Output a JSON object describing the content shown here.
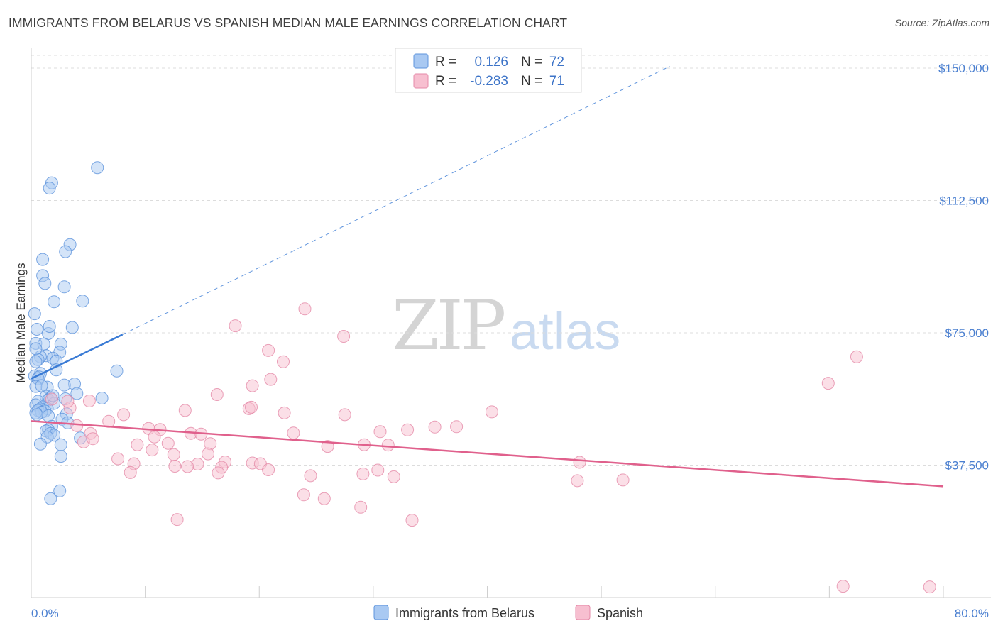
{
  "header": {
    "title": "IMMIGRANTS FROM BELARUS VS SPANISH MEDIAN MALE EARNINGS CORRELATION CHART",
    "source": "Source: ZipAtlas.com"
  },
  "watermark": {
    "zip": "ZIP",
    "atlas": "atlas"
  },
  "colors": {
    "blue_fill": "#a9c9f2",
    "blue_stroke": "#5e94dc",
    "blue_line": "#3a7bd5",
    "pink_fill": "#f7bfd0",
    "pink_stroke": "#e58aa8",
    "pink_line": "#e0608c",
    "axis_text": "#4a7fd0",
    "grid": "#dcdcdc"
  },
  "legend": {
    "rows": [
      {
        "r_label": "R =",
        "r_value": "0.126",
        "n_label": "N =",
        "n_value": "72"
      },
      {
        "r_label": "R =",
        "r_value": "-0.283",
        "n_label": "N =",
        "n_value": "71"
      }
    ]
  },
  "chart_data": {
    "type": "scatter",
    "title": "IMMIGRANTS FROM BELARUS VS SPANISH MEDIAN MALE EARNINGS CORRELATION CHART",
    "xlabel": "",
    "ylabel": "Median Male Earnings",
    "xlim": [
      0,
      80
    ],
    "ylim": [
      0,
      157000
    ],
    "x_tick_labels": [
      "0.0%",
      "80.0%"
    ],
    "y_ticks": [
      37500,
      75000,
      112500,
      150000
    ],
    "y_tick_labels": [
      "$37,500",
      "$75,000",
      "$112,500",
      "$150,000"
    ],
    "grid": true,
    "legend_position": "top-center",
    "series": [
      {
        "name": "Immigrants from Belarus",
        "color": "#a9c9f2",
        "r": 0.126,
        "n": 72,
        "trend": {
          "x": [
            0,
            8
          ],
          "y": [
            62000,
            74500
          ],
          "dashed_extension_to": [
            56,
            150500
          ]
        },
        "points": [
          [
            5.8,
            121800
          ],
          [
            1.8,
            117500
          ],
          [
            1.6,
            116000
          ],
          [
            3.4,
            100000
          ],
          [
            3.0,
            98000
          ],
          [
            1.0,
            95800
          ],
          [
            1.0,
            91200
          ],
          [
            1.2,
            89000
          ],
          [
            2.9,
            88000
          ],
          [
            4.5,
            84000
          ],
          [
            2.0,
            83800
          ],
          [
            0.3,
            80400
          ],
          [
            1.5,
            74800
          ],
          [
            3.6,
            76500
          ],
          [
            1.6,
            76800
          ],
          [
            0.5,
            76000
          ],
          [
            0.4,
            72000
          ],
          [
            1.1,
            71800
          ],
          [
            2.6,
            71800
          ],
          [
            2.5,
            69500
          ],
          [
            1.3,
            68500
          ],
          [
            0.8,
            68200
          ],
          [
            1.9,
            67800
          ],
          [
            0.6,
            67400
          ],
          [
            2.2,
            67000
          ],
          [
            0.4,
            66800
          ],
          [
            7.5,
            64200
          ],
          [
            2.2,
            64500
          ],
          [
            0.8,
            63500
          ],
          [
            0.3,
            62800
          ],
          [
            0.7,
            62500
          ],
          [
            0.6,
            62000
          ],
          [
            3.8,
            60500
          ],
          [
            0.4,
            59800
          ],
          [
            1.4,
            59600
          ],
          [
            4.0,
            57800
          ],
          [
            1.3,
            57000
          ],
          [
            1.7,
            56600
          ],
          [
            6.2,
            56500
          ],
          [
            3.0,
            56300
          ],
          [
            1.5,
            56000
          ],
          [
            0.6,
            55600
          ],
          [
            2.0,
            55000
          ],
          [
            0.4,
            54600
          ],
          [
            1.0,
            54000
          ],
          [
            1.4,
            53500
          ],
          [
            0.8,
            53400
          ],
          [
            0.6,
            53000
          ],
          [
            1.2,
            52800
          ],
          [
            0.9,
            52500
          ],
          [
            3.1,
            52000
          ],
          [
            0.4,
            52300
          ],
          [
            1.5,
            51500
          ],
          [
            0.5,
            51800
          ],
          [
            2.7,
            50500
          ],
          [
            3.2,
            49500
          ],
          [
            1.8,
            48500
          ],
          [
            1.5,
            47500
          ],
          [
            1.3,
            47200
          ],
          [
            1.7,
            46500
          ],
          [
            2.0,
            46000
          ],
          [
            1.4,
            45500
          ],
          [
            4.3,
            45200
          ],
          [
            0.8,
            43500
          ],
          [
            2.6,
            43300
          ],
          [
            2.6,
            40000
          ],
          [
            2.5,
            30200
          ],
          [
            1.7,
            28000
          ],
          [
            0.9,
            60000
          ],
          [
            0.4,
            70500
          ],
          [
            2.9,
            60200
          ],
          [
            1.9,
            57200
          ]
        ]
      },
      {
        "name": "Spanish",
        "color": "#f7bfd0",
        "r": -0.283,
        "n": 71,
        "trend": {
          "x": [
            0,
            80
          ],
          "y": [
            50000,
            31500
          ]
        },
        "points": [
          [
            24.0,
            81800
          ],
          [
            17.9,
            77000
          ],
          [
            27.4,
            74000
          ],
          [
            20.8,
            70000
          ],
          [
            22.1,
            66800
          ],
          [
            72.4,
            68200
          ],
          [
            21.0,
            61800
          ],
          [
            19.4,
            60000
          ],
          [
            69.9,
            60700
          ],
          [
            16.3,
            57500
          ],
          [
            19.1,
            53500
          ],
          [
            19.3,
            53900
          ],
          [
            13.5,
            53000
          ],
          [
            22.2,
            52300
          ],
          [
            40.4,
            52600
          ],
          [
            27.5,
            51800
          ],
          [
            8.1,
            51800
          ],
          [
            11.3,
            47600
          ],
          [
            33.0,
            47500
          ],
          [
            23.0,
            46600
          ],
          [
            35.4,
            48300
          ],
          [
            37.3,
            48400
          ],
          [
            10.3,
            47900
          ],
          [
            14.0,
            46500
          ],
          [
            14.9,
            46300
          ],
          [
            30.6,
            47000
          ],
          [
            10.8,
            45500
          ],
          [
            5.2,
            46500
          ],
          [
            15.7,
            43600
          ],
          [
            9.3,
            43300
          ],
          [
            12.0,
            43700
          ],
          [
            26.0,
            42800
          ],
          [
            29.2,
            43300
          ],
          [
            31.3,
            43200
          ],
          [
            10.6,
            41800
          ],
          [
            15.5,
            40700
          ],
          [
            12.5,
            40500
          ],
          [
            7.6,
            39300
          ],
          [
            17.0,
            38400
          ],
          [
            19.4,
            38100
          ],
          [
            20.1,
            37900
          ],
          [
            48.1,
            38300
          ],
          [
            14.6,
            37800
          ],
          [
            9.0,
            37900
          ],
          [
            12.6,
            37200
          ],
          [
            13.7,
            37100
          ],
          [
            16.7,
            36900
          ],
          [
            20.8,
            36200
          ],
          [
            30.4,
            36100
          ],
          [
            29.1,
            35000
          ],
          [
            16.4,
            35300
          ],
          [
            8.7,
            35400
          ],
          [
            24.5,
            34500
          ],
          [
            31.8,
            34200
          ],
          [
            47.9,
            33100
          ],
          [
            51.9,
            33300
          ],
          [
            23.9,
            29100
          ],
          [
            25.7,
            28000
          ],
          [
            28.9,
            25600
          ],
          [
            12.8,
            22100
          ],
          [
            33.4,
            21900
          ],
          [
            71.2,
            3200
          ],
          [
            78.8,
            3000
          ],
          [
            5.1,
            55700
          ],
          [
            3.4,
            53700
          ],
          [
            3.2,
            55600
          ],
          [
            4.6,
            44100
          ],
          [
            1.8,
            56200
          ],
          [
            4.0,
            48700
          ],
          [
            6.8,
            49900
          ],
          [
            5.4,
            45000
          ]
        ]
      }
    ]
  }
}
